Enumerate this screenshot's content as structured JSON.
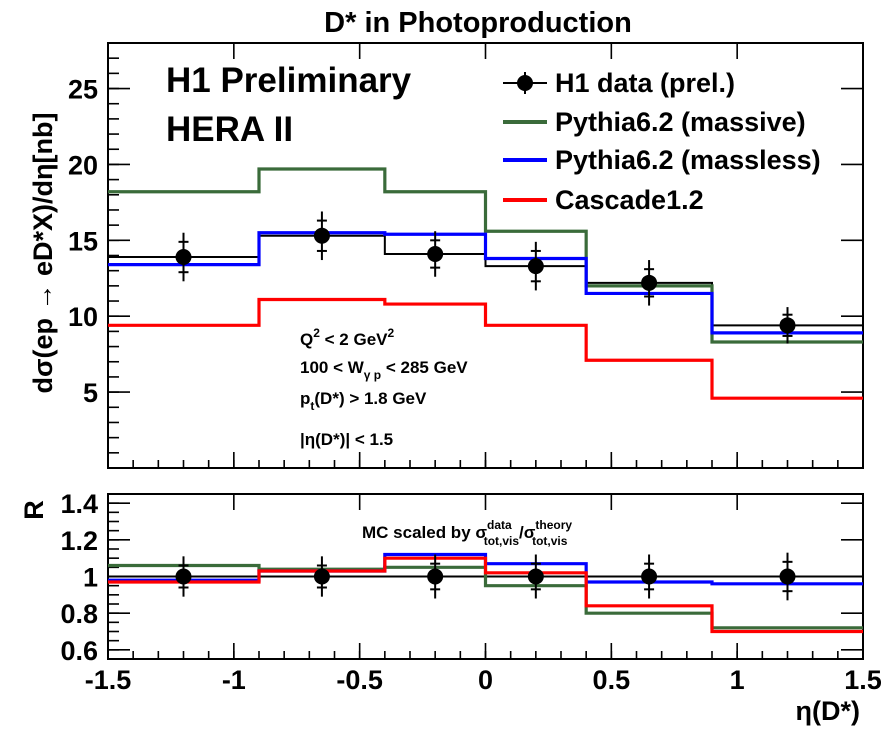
{
  "chart_data": [
    {
      "type": "step",
      "title": "D* in Photoproduction",
      "ylabel": "dσ(ep → eD*X)/dη[nb]",
      "xlim": [
        -1.5,
        1.5
      ],
      "ylim": [
        0,
        28
      ],
      "yticks": [
        5,
        10,
        15,
        20,
        25
      ],
      "annotations": [
        "H1 Preliminary",
        "HERA II"
      ],
      "cuts": [
        "Q² < 2 GeV²",
        "100 < Wγp < 285 GeV",
        "pt(D*) > 1.8 GeV",
        "|η(D*)| < 1.5"
      ],
      "bin_edges": [
        -1.5,
        -0.9,
        -0.4,
        0.0,
        0.4,
        0.9,
        1.5
      ],
      "data": {
        "name": "H1 data (prel.)",
        "color": "#000000",
        "x": [
          -1.2,
          -0.65,
          -0.2,
          0.2,
          0.65,
          1.2
        ],
        "y": [
          13.9,
          15.3,
          14.1,
          13.3,
          12.2,
          9.4
        ],
        "err_inner": [
          1.0,
          1.0,
          0.9,
          1.0,
          0.9,
          0.7
        ],
        "err_outer": [
          1.6,
          1.6,
          1.5,
          1.6,
          1.5,
          1.2
        ],
        "hist": [
          13.9,
          15.3,
          14.1,
          13.3,
          12.2,
          9.4
        ]
      },
      "series": [
        {
          "name": "Pythia6.2 (massive)",
          "color": "#3a6b3a",
          "values": [
            18.2,
            19.7,
            18.2,
            15.6,
            12.0,
            8.3
          ]
        },
        {
          "name": "Pythia6.2 (massless)",
          "color": "#0000ff",
          "values": [
            13.4,
            15.5,
            15.4,
            13.8,
            11.5,
            8.9
          ]
        },
        {
          "name": "Cascade1.2",
          "color": "#ff0000",
          "values": [
            9.4,
            11.1,
            10.8,
            9.4,
            7.1,
            4.6
          ]
        }
      ]
    },
    {
      "type": "step",
      "ylabel": "R",
      "xlabel": "η(D*)",
      "xlim": [
        -1.5,
        1.5
      ],
      "ylim": [
        0.55,
        1.45
      ],
      "xticks": [
        -1.5,
        -1,
        -0.5,
        0,
        0.5,
        1,
        1.5
      ],
      "xtick_labels": [
        "-1.5",
        "-1",
        "-0.5",
        "0",
        "0.5",
        "1",
        "1.5"
      ],
      "yticks": [
        0.6,
        0.8,
        1.0,
        1.2,
        1.4
      ],
      "ytick_labels": [
        "0.6",
        "0.8",
        "1",
        "1.2",
        "1.4"
      ],
      "note": "MC scaled by σ^data_tot,vis / σ^theory_tot,vis",
      "bin_edges": [
        -1.5,
        -0.9,
        -0.4,
        0.0,
        0.4,
        0.9,
        1.5
      ],
      "data": {
        "color": "#000000",
        "x": [
          -1.2,
          -0.65,
          -0.2,
          0.2,
          0.65,
          1.2
        ],
        "y": [
          1.0,
          1.0,
          1.0,
          1.0,
          1.0,
          1.0
        ],
        "err_inner": [
          0.06,
          0.06,
          0.07,
          0.07,
          0.07,
          0.08
        ],
        "err_outer": [
          0.11,
          0.11,
          0.12,
          0.12,
          0.12,
          0.13
        ],
        "hist": [
          1.0,
          1.0,
          1.0,
          1.0,
          1.0,
          1.0
        ]
      },
      "series": [
        {
          "name": "Pythia6.2 (massive)",
          "color": "#3a6b3a",
          "values": [
            1.06,
            1.04,
            1.05,
            0.95,
            0.8,
            0.72
          ]
        },
        {
          "name": "Pythia6.2 (massless)",
          "color": "#0000ff",
          "values": [
            0.98,
            1.03,
            1.12,
            1.07,
            0.97,
            0.96
          ]
        },
        {
          "name": "Cascade1.2",
          "color": "#ff0000",
          "values": [
            0.97,
            1.03,
            1.1,
            1.02,
            0.84,
            0.7
          ]
        }
      ]
    }
  ]
}
